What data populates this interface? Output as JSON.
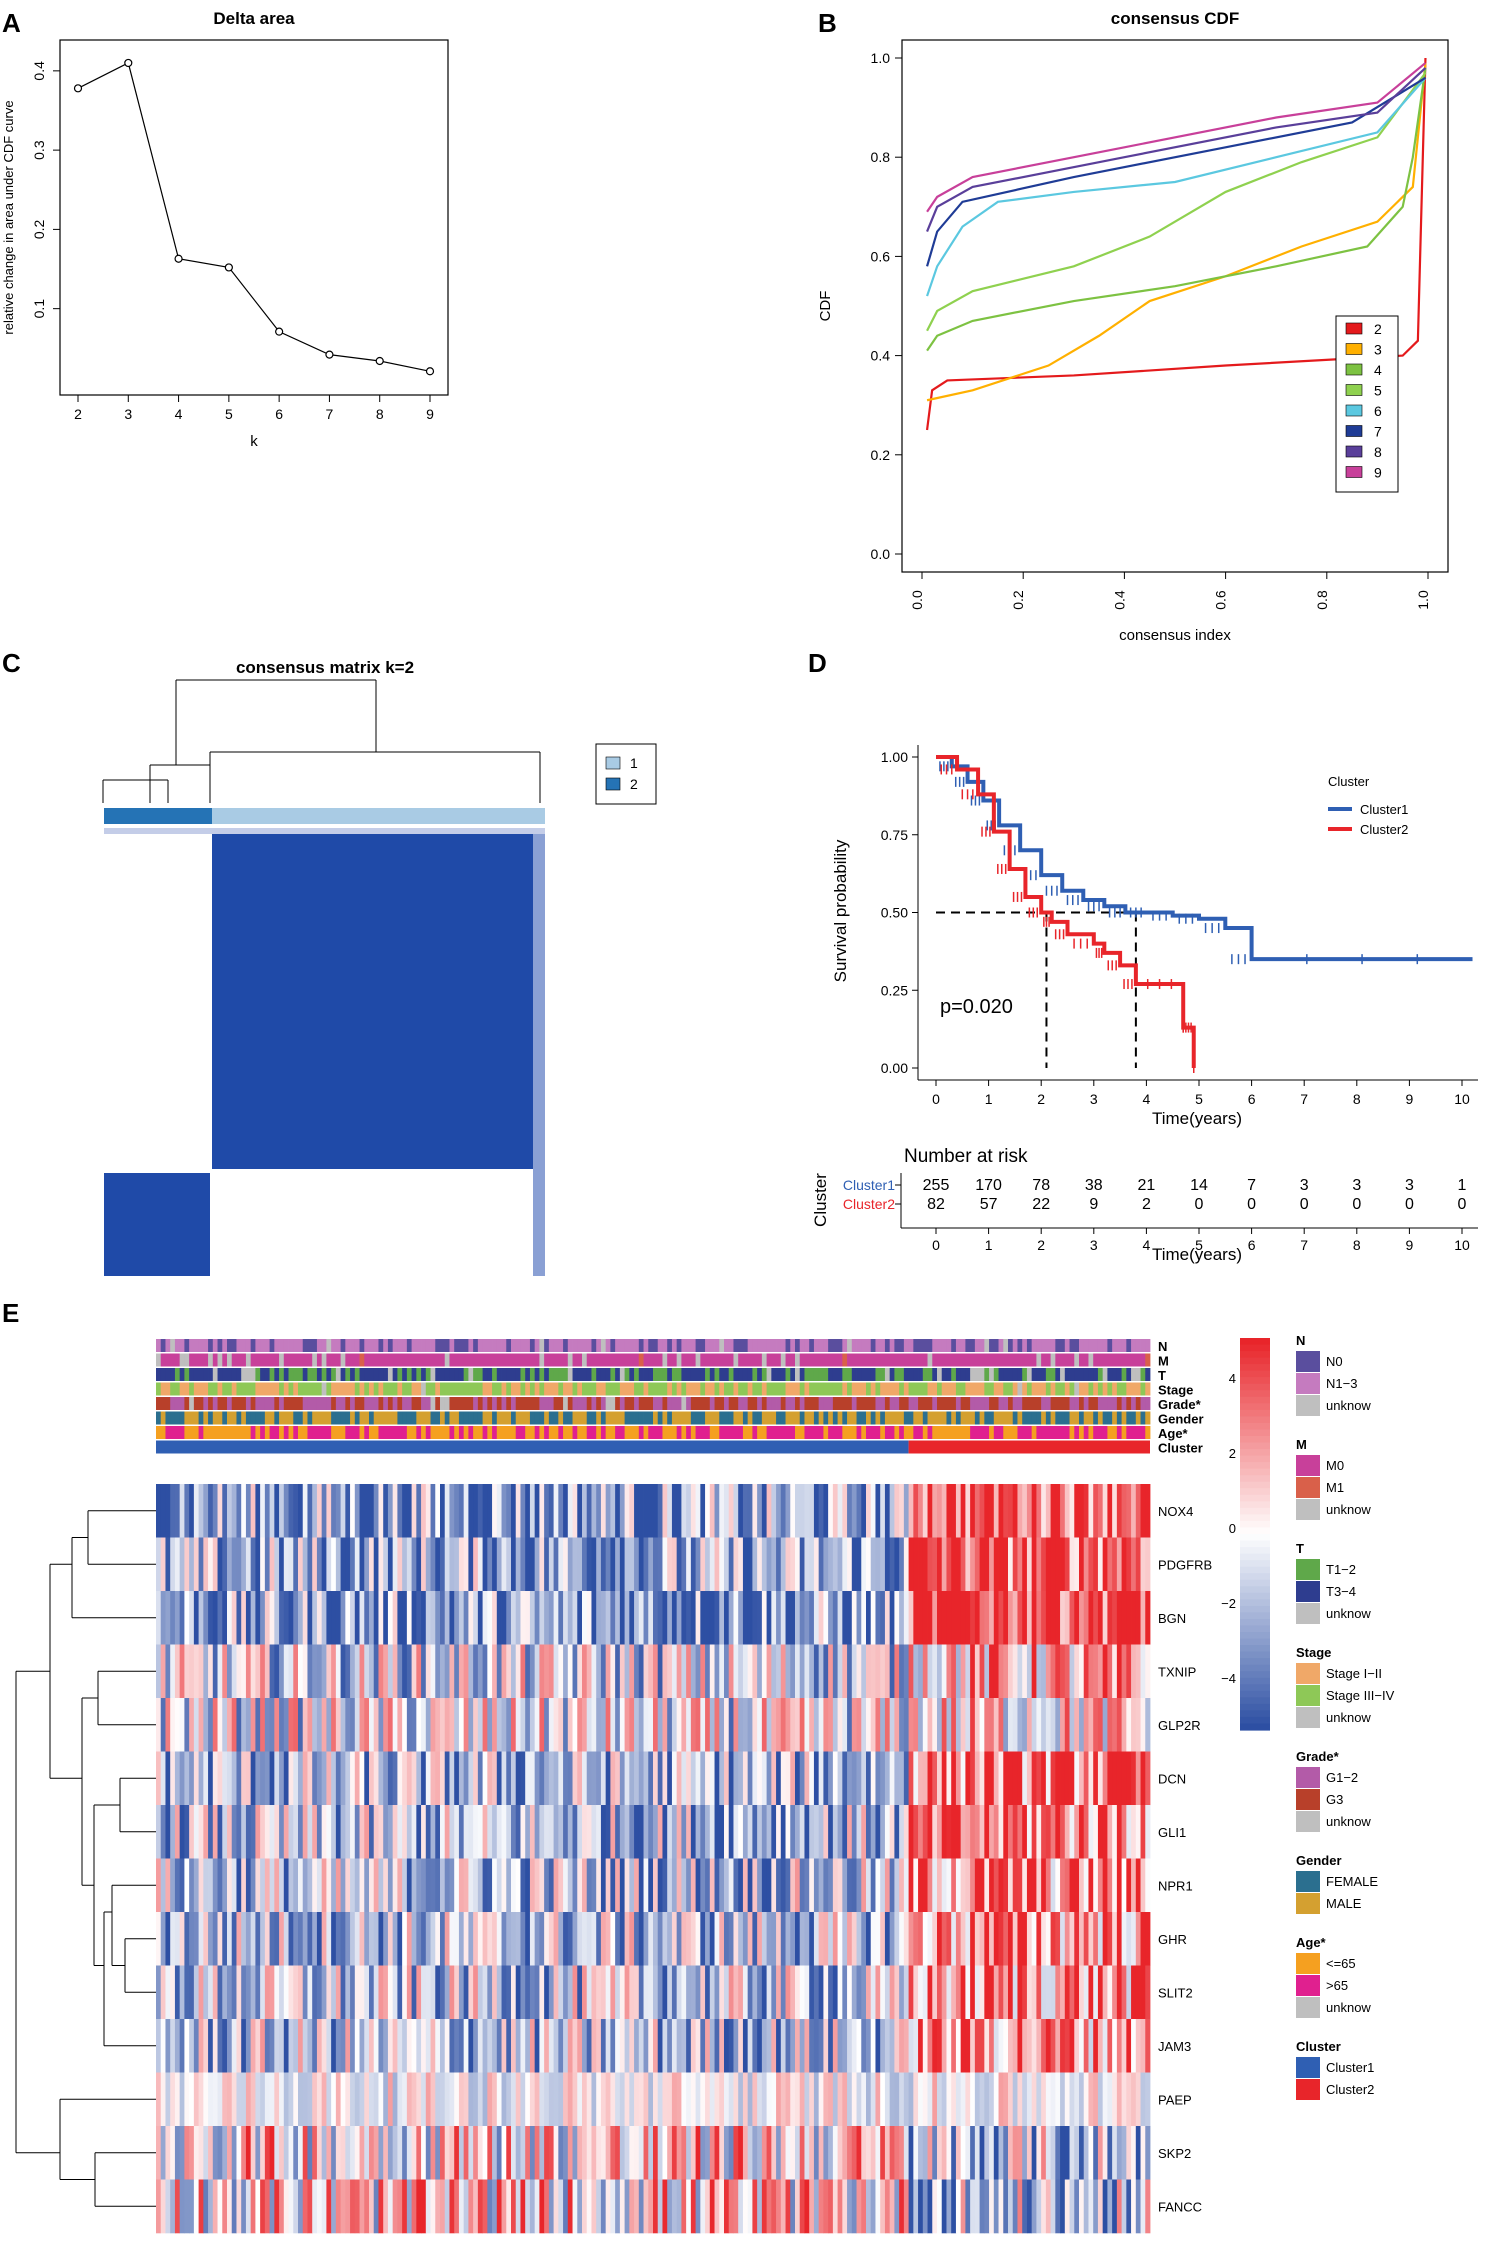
{
  "panels": {
    "A": {
      "letter": "A"
    },
    "B": {
      "letter": "B"
    },
    "C": {
      "letter": "C"
    },
    "D": {
      "letter": "D"
    },
    "E": {
      "letter": "E"
    }
  },
  "colors": {
    "red": "#e41a1c",
    "orange": "#ffb000",
    "green": "#7dc242",
    "lightgreen": "#8fd14f",
    "cyan": "#5bc8e0",
    "darkblue": "#1f3c96",
    "purple": "#5a3f9a",
    "magenta": "#c8409a",
    "cluster1": "#2f5fb3",
    "cluster2": "#e8252a",
    "heat_high": "#e8252a",
    "heat_low": "#2d4fa3",
    "consensus_dark": "#1f4aa8",
    "consensus_light": "#a9cbe4",
    "N0": "#5a4e9e",
    "N1-3": "#c57bbf",
    "unknow": "#bfbfbf",
    "M0": "#c8409a",
    "M1": "#d9604a",
    "T1-2": "#5fa84a",
    "T3-4": "#2e3d8f",
    "StageI-II": "#f0a868",
    "StageIII-IV": "#8ec857",
    "G1-2": "#b35ba8",
    "G3": "#b8402a",
    "FEMALE": "#2b6f8f",
    "MALE": "#d4a030",
    "age_le65": "#f5a020",
    "age_gt65": "#e0208f"
  },
  "chart_data": [
    {
      "panel": "A",
      "type": "line",
      "title": "Delta area",
      "xlabel": "k",
      "ylabel": "relative change in area under CDF curve",
      "x": [
        2,
        3,
        4,
        5,
        6,
        7,
        8,
        9
      ],
      "y": [
        0.378,
        0.41,
        0.163,
        0.152,
        0.071,
        0.042,
        0.034,
        0.021
      ],
      "xticks": [
        "2",
        "3",
        "4",
        "5",
        "6",
        "7",
        "8",
        "9"
      ],
      "yticks": [
        "0.1",
        "0.2",
        "0.3",
        "0.4"
      ],
      "ylim": [
        0.01,
        0.42
      ]
    },
    {
      "panel": "B",
      "type": "line",
      "title": "consensus CDF",
      "xlabel": "consensus index",
      "ylabel": "CDF",
      "xticks": [
        "0.0",
        "0.2",
        "0.4",
        "0.6",
        "0.8",
        "1.0"
      ],
      "yticks": [
        "0.0",
        "0.2",
        "0.4",
        "0.6",
        "0.8",
        "1.0"
      ],
      "legend_position": "right",
      "series": [
        {
          "name": "2",
          "color_key": "red",
          "points": [
            [
              0.01,
              0.25
            ],
            [
              0.02,
              0.33
            ],
            [
              0.05,
              0.35
            ],
            [
              0.3,
              0.36
            ],
            [
              0.6,
              0.38
            ],
            [
              0.95,
              0.4
            ],
            [
              0.98,
              0.43
            ],
            [
              0.995,
              1.0
            ]
          ]
        },
        {
          "name": "3",
          "color_key": "orange",
          "points": [
            [
              0.01,
              0.31
            ],
            [
              0.1,
              0.33
            ],
            [
              0.25,
              0.38
            ],
            [
              0.35,
              0.44
            ],
            [
              0.45,
              0.51
            ],
            [
              0.6,
              0.56
            ],
            [
              0.75,
              0.62
            ],
            [
              0.9,
              0.67
            ],
            [
              0.97,
              0.74
            ],
            [
              0.995,
              0.99
            ]
          ]
        },
        {
          "name": "4",
          "color_key": "green",
          "points": [
            [
              0.01,
              0.41
            ],
            [
              0.03,
              0.44
            ],
            [
              0.1,
              0.47
            ],
            [
              0.3,
              0.51
            ],
            [
              0.5,
              0.54
            ],
            [
              0.7,
              0.58
            ],
            [
              0.88,
              0.62
            ],
            [
              0.95,
              0.7
            ],
            [
              0.97,
              0.8
            ],
            [
              0.995,
              0.98
            ]
          ]
        },
        {
          "name": "5",
          "color_key": "lightgreen",
          "points": [
            [
              0.01,
              0.45
            ],
            [
              0.03,
              0.49
            ],
            [
              0.1,
              0.53
            ],
            [
              0.3,
              0.58
            ],
            [
              0.45,
              0.64
            ],
            [
              0.6,
              0.73
            ],
            [
              0.75,
              0.79
            ],
            [
              0.9,
              0.84
            ],
            [
              0.995,
              0.97
            ]
          ]
        },
        {
          "name": "6",
          "color_key": "cyan",
          "points": [
            [
              0.01,
              0.52
            ],
            [
              0.03,
              0.58
            ],
            [
              0.08,
              0.66
            ],
            [
              0.15,
              0.71
            ],
            [
              0.3,
              0.73
            ],
            [
              0.5,
              0.75
            ],
            [
              0.7,
              0.8
            ],
            [
              0.9,
              0.85
            ],
            [
              0.995,
              0.96
            ]
          ]
        },
        {
          "name": "7",
          "color_key": "darkblue",
          "points": [
            [
              0.01,
              0.58
            ],
            [
              0.03,
              0.65
            ],
            [
              0.08,
              0.71
            ],
            [
              0.3,
              0.76
            ],
            [
              0.6,
              0.82
            ],
            [
              0.85,
              0.87
            ],
            [
              0.995,
              0.96
            ]
          ]
        },
        {
          "name": "8",
          "color_key": "purple",
          "points": [
            [
              0.01,
              0.65
            ],
            [
              0.03,
              0.7
            ],
            [
              0.1,
              0.74
            ],
            [
              0.4,
              0.8
            ],
            [
              0.7,
              0.86
            ],
            [
              0.9,
              0.89
            ],
            [
              0.995,
              0.98
            ]
          ]
        },
        {
          "name": "9",
          "color_key": "magenta",
          "points": [
            [
              0.01,
              0.69
            ],
            [
              0.03,
              0.72
            ],
            [
              0.1,
              0.76
            ],
            [
              0.4,
              0.82
            ],
            [
              0.7,
              0.88
            ],
            [
              0.9,
              0.91
            ],
            [
              0.995,
              0.99
            ]
          ]
        }
      ]
    },
    {
      "panel": "C",
      "type": "heatmap",
      "title": "consensus matrix k=2",
      "legend": [
        "1",
        "2"
      ],
      "cluster_fractions": {
        "2": 0.25,
        "1": 0.75
      }
    },
    {
      "panel": "D",
      "type": "line",
      "xlabel": "Time(years)",
      "ylabel": "Survival probability",
      "legend_title": "Cluster",
      "annotation": "p=0.020",
      "xticks": [
        "0",
        "1",
        "2",
        "3",
        "4",
        "5",
        "6",
        "7",
        "8",
        "9",
        "10"
      ],
      "yticks": [
        "0.00",
        "0.25",
        "0.50",
        "0.75",
        "1.00"
      ],
      "median_survival": {
        "Cluster2": 2.1,
        "Cluster1": 3.8
      },
      "series": [
        {
          "name": "Cluster1",
          "color_key": "cluster1",
          "points": [
            [
              0,
              1.0
            ],
            [
              0.3,
              0.97
            ],
            [
              0.6,
              0.92
            ],
            [
              0.9,
              0.86
            ],
            [
              1.2,
              0.78
            ],
            [
              1.6,
              0.7
            ],
            [
              2.0,
              0.62
            ],
            [
              2.4,
              0.57
            ],
            [
              2.8,
              0.54
            ],
            [
              3.2,
              0.52
            ],
            [
              3.6,
              0.5
            ],
            [
              4.0,
              0.5
            ],
            [
              4.5,
              0.49
            ],
            [
              5.0,
              0.48
            ],
            [
              5.5,
              0.45
            ],
            [
              6.0,
              0.35
            ],
            [
              10.2,
              0.35
            ]
          ]
        },
        {
          "name": "Cluster2",
          "color_key": "cluster2",
          "points": [
            [
              0,
              1.0
            ],
            [
              0.4,
              0.96
            ],
            [
              0.8,
              0.88
            ],
            [
              1.1,
              0.76
            ],
            [
              1.4,
              0.64
            ],
            [
              1.7,
              0.55
            ],
            [
              2.0,
              0.5
            ],
            [
              2.2,
              0.47
            ],
            [
              2.5,
              0.43
            ],
            [
              3.0,
              0.4
            ],
            [
              3.2,
              0.37
            ],
            [
              3.5,
              0.33
            ],
            [
              3.8,
              0.27
            ],
            [
              4.7,
              0.27
            ],
            [
              4.7,
              0.13
            ],
            [
              4.9,
              0.13
            ],
            [
              4.9,
              0.0
            ]
          ]
        }
      ],
      "risk_table": {
        "title": "Number at risk",
        "ylabel": "Cluster",
        "rows": [
          {
            "name": "Cluster1",
            "color_key": "cluster1",
            "values": [
              "255",
              "170",
              "78",
              "38",
              "21",
              "14",
              "7",
              "3",
              "3",
              "3",
              "1"
            ]
          },
          {
            "name": "Cluster2",
            "color_key": "cluster2",
            "values": [
              "82",
              "57",
              "22",
              "9",
              "2",
              "0",
              "0",
              "0",
              "0",
              "0",
              "0"
            ]
          }
        ]
      }
    },
    {
      "panel": "E",
      "type": "heatmap",
      "annotation_tracks": [
        "N",
        "M",
        "T",
        "Stage",
        "Grade*",
        "Gender",
        "Age*",
        "Cluster"
      ],
      "genes": [
        "NOX4",
        "PDGFRB",
        "BGN",
        "TXNIP",
        "GLP2R",
        "DCN",
        "GLI1",
        "NPR1",
        "GHR",
        "SLIT2",
        "JAM3",
        "PAEP",
        "SKP2",
        "FANCC"
      ],
      "cluster1_fraction": 0.757,
      "colorbar_ticks": [
        "4",
        "2",
        "0",
        "−2",
        "−4"
      ],
      "legend_groups": [
        {
          "title": "N",
          "items": [
            {
              "label": "N0",
              "color_key": "N0"
            },
            {
              "label": "N1−3",
              "color_key": "N1-3"
            },
            {
              "label": "unknow",
              "color_key": "unknow"
            }
          ]
        },
        {
          "title": "M",
          "items": [
            {
              "label": "M0",
              "color_key": "M0"
            },
            {
              "label": "M1",
              "color_key": "M1"
            },
            {
              "label": "unknow",
              "color_key": "unknow"
            }
          ]
        },
        {
          "title": "T",
          "items": [
            {
              "label": "T1−2",
              "color_key": "T1-2"
            },
            {
              "label": "T3−4",
              "color_key": "T3-4"
            },
            {
              "label": "unknow",
              "color_key": "unknow"
            }
          ]
        },
        {
          "title": "Stage",
          "items": [
            {
              "label": "Stage I−II",
              "color_key": "StageI-II"
            },
            {
              "label": "Stage III−IV",
              "color_key": "StageIII-IV"
            },
            {
              "label": "unknow",
              "color_key": "unknow"
            }
          ]
        },
        {
          "title": "Grade*",
          "items": [
            {
              "label": "G1−2",
              "color_key": "G1-2"
            },
            {
              "label": "G3",
              "color_key": "G3"
            },
            {
              "label": "unknow",
              "color_key": "unknow"
            }
          ]
        },
        {
          "title": "Gender",
          "items": [
            {
              "label": "FEMALE",
              "color_key": "FEMALE"
            },
            {
              "label": "MALE",
              "color_key": "MALE"
            }
          ]
        },
        {
          "title": "Age*",
          "items": [
            {
              "label": "<=65",
              "color_key": "age_le65"
            },
            {
              "label": ">65",
              "color_key": "age_gt65"
            },
            {
              "label": "unknow",
              "color_key": "unknow"
            }
          ]
        },
        {
          "title": "Cluster",
          "items": [
            {
              "label": "Cluster1",
              "color_key": "cluster1"
            },
            {
              "label": "Cluster2",
              "color_key": "cluster2"
            }
          ]
        }
      ]
    }
  ]
}
